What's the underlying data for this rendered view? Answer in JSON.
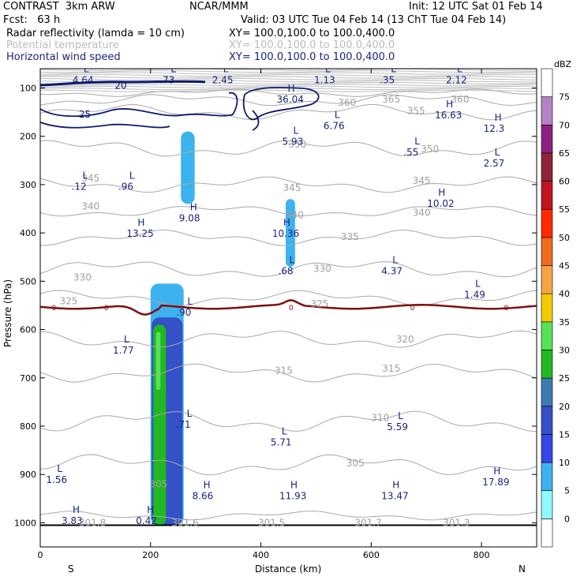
{
  "header": {
    "left1": "CONTRAST  3km ARW",
    "center1": "NCAR/MMM",
    "right1": "Init: 12 UTC Sat 01 Feb 14",
    "left2": "Fcst:   63 h",
    "right2": "Valid: 03 UTC Tue 04 Feb 14 (13 ChT Tue 04 Feb 14)",
    "field1_name": "Radar reflectivity (lamda = 10 cm)",
    "field1_xy": "XY= 100.0,100.0 to 100.0,400.0",
    "field2_name": "Potential temperature",
    "field2_xy": "XY= 100.0,100.0 to 100.0,400.0",
    "field3_name": "Horizontal wind speed",
    "field3_xy": "XY= 100.0,100.0 to 100.0,400.0"
  },
  "chart_data": {
    "type": "cross-section",
    "xlabel": "Distance (km)",
    "ylabel": "Pressure (hPa)",
    "xlim": [
      0,
      900
    ],
    "ylim": [
      1050,
      60
    ],
    "x_ticks": [
      0,
      200,
      400,
      600,
      800
    ],
    "y_ticks": [
      100,
      200,
      300,
      400,
      500,
      600,
      700,
      800,
      900,
      1000
    ],
    "left_end_label": "S",
    "right_end_label": "N",
    "colorbar": {
      "unit": "dBZ",
      "levels": [
        0,
        5,
        10,
        15,
        20,
        25,
        30,
        35,
        40,
        45,
        50,
        55,
        60,
        65,
        70,
        75
      ],
      "colors": [
        "#ffffff",
        "#8ffaff",
        "#3cb3ee",
        "#3346e8",
        "#3451c8",
        "#3f7bb0",
        "#21b821",
        "#55e255",
        "#f2cc00",
        "#f5a442",
        "#f06a1e",
        "#ff2a00",
        "#c0141f",
        "#8f2438",
        "#8c2080",
        "#b383c3",
        "#ffffff"
      ]
    },
    "theta_labels": [
      {
        "x": 540,
        "p": 130,
        "text": "360"
      },
      {
        "x": 620,
        "p": 124,
        "text": "365"
      },
      {
        "x": 665,
        "p": 147,
        "text": "355"
      },
      {
        "x": 745,
        "p": 124,
        "text": "360"
      },
      {
        "x": 450,
        "p": 217,
        "text": "350"
      },
      {
        "x": 690,
        "p": 227,
        "text": "350"
      },
      {
        "x": 75,
        "p": 287,
        "text": "345"
      },
      {
        "x": 440,
        "p": 307,
        "text": "345"
      },
      {
        "x": 675,
        "p": 292,
        "text": "345"
      },
      {
        "x": 75,
        "p": 345,
        "text": "340"
      },
      {
        "x": 445,
        "p": 363,
        "text": "340"
      },
      {
        "x": 675,
        "p": 358,
        "text": "340"
      },
      {
        "x": 545,
        "p": 408,
        "text": "335"
      },
      {
        "x": 60,
        "p": 492,
        "text": "330"
      },
      {
        "x": 495,
        "p": 474,
        "text": "330"
      },
      {
        "x": 35,
        "p": 541,
        "text": "325"
      },
      {
        "x": 490,
        "p": 547,
        "text": "325"
      },
      {
        "x": 645,
        "p": 620,
        "text": "320"
      },
      {
        "x": 425,
        "p": 685,
        "text": "315"
      },
      {
        "x": 620,
        "p": 681,
        "text": "315"
      },
      {
        "x": 600,
        "p": 783,
        "text": "310"
      },
      {
        "x": 555,
        "p": 877,
        "text": "305"
      },
      {
        "x": 198,
        "p": 920,
        "text": "305"
      }
    ],
    "surface_theta_labels": [
      {
        "x": 70,
        "text": "301.8"
      },
      {
        "x": 238,
        "text": "301.6"
      },
      {
        "x": 395,
        "text": "301.5"
      },
      {
        "x": 570,
        "text": "301.7"
      },
      {
        "x": 730,
        "text": "301.3"
      }
    ],
    "wind_contour_labels": [
      {
        "x": 135,
        "p": 95,
        "text": "20"
      },
      {
        "x": 70,
        "p": 155,
        "text": "25"
      }
    ],
    "zero_line_labels": [
      {
        "x": 25,
        "text": "0"
      },
      {
        "x": 120,
        "text": "0"
      },
      {
        "x": 455,
        "text": "0"
      },
      {
        "x": 675,
        "text": "0"
      },
      {
        "x": 845,
        "text": "0"
      }
    ],
    "extrema": [
      {
        "type": "L",
        "value": "4.64",
        "x": 70,
        "p": 72
      },
      {
        "type": "L",
        "value": ".73",
        "x": 228,
        "p": 72
      },
      {
        "type": "L",
        "value": "2.45",
        "x": 323,
        "p": 72
      },
      {
        "type": "L",
        "value": "1.13",
        "x": 508,
        "p": 72
      },
      {
        "type": "L",
        "value": ".35",
        "x": 627,
        "p": 72
      },
      {
        "type": "L",
        "value": "2.12",
        "x": 747,
        "p": 72
      },
      {
        "type": "H",
        "value": "36.04",
        "x": 440,
        "p": 112
      },
      {
        "type": "H",
        "value": "16.63",
        "x": 727,
        "p": 145
      },
      {
        "type": "H",
        "value": "12.3",
        "x": 815,
        "p": 173
      },
      {
        "type": "L",
        "value": "6.76",
        "x": 525,
        "p": 167
      },
      {
        "type": "L",
        "value": "5.93",
        "x": 450,
        "p": 200
      },
      {
        "type": "L",
        "value": ".55",
        "x": 670,
        "p": 222
      },
      {
        "type": "L",
        "value": "2.57",
        "x": 815,
        "p": 245
      },
      {
        "type": "L",
        "value": ".12",
        "x": 68,
        "p": 293
      },
      {
        "type": "L",
        "value": ".96",
        "x": 153,
        "p": 293
      },
      {
        "type": "H",
        "value": "10.02",
        "x": 713,
        "p": 328
      },
      {
        "type": "H",
        "value": "9.08",
        "x": 263,
        "p": 358
      },
      {
        "type": "H",
        "value": "13.25",
        "x": 168,
        "p": 390
      },
      {
        "type": "H",
        "value": "10.36",
        "x": 432,
        "p": 390
      },
      {
        "type": "L",
        "value": ".68",
        "x": 443,
        "p": 468
      },
      {
        "type": "L",
        "value": "4.37",
        "x": 630,
        "p": 468
      },
      {
        "type": "L",
        "value": "1.49",
        "x": 780,
        "p": 517
      },
      {
        "type": "L",
        "value": ".90",
        "x": 258,
        "p": 553
      },
      {
        "type": "L",
        "value": "1.77",
        "x": 143,
        "p": 632
      },
      {
        "type": "L",
        "value": ".71",
        "x": 257,
        "p": 785
      },
      {
        "type": "L",
        "value": "5.71",
        "x": 429,
        "p": 822
      },
      {
        "type": "L",
        "value": "5.59",
        "x": 640,
        "p": 790
      },
      {
        "type": "L",
        "value": "1.56",
        "x": 22,
        "p": 900
      },
      {
        "type": "H",
        "value": "8.66",
        "x": 287,
        "p": 933
      },
      {
        "type": "H",
        "value": "11.93",
        "x": 445,
        "p": 933
      },
      {
        "type": "H",
        "value": "13.47",
        "x": 630,
        "p": 933
      },
      {
        "type": "H",
        "value": "17.89",
        "x": 813,
        "p": 905
      },
      {
        "type": "H",
        "value": "3.83",
        "x": 50,
        "p": 985
      },
      {
        "type": "H",
        "value": "0.42",
        "x": 185,
        "p": 985
      }
    ],
    "reflectivity_cells": [
      {
        "dbz": 5,
        "x1": 255,
        "x2": 280,
        "p1": 190,
        "p2": 340
      },
      {
        "dbz": 5,
        "x1": 445,
        "x2": 462,
        "p1": 330,
        "p2": 470
      },
      {
        "dbz": 5,
        "x1": 200,
        "x2": 260,
        "p1": 505,
        "p2": 1005
      },
      {
        "dbz": 15,
        "x1": 202,
        "x2": 258,
        "p1": 575,
        "p2": 1005
      },
      {
        "dbz": 25,
        "x1": 205,
        "x2": 228,
        "p1": 590,
        "p2": 1005
      },
      {
        "dbz": 30,
        "x1": 210,
        "x2": 218,
        "p1": 605,
        "p2": 725
      }
    ]
  }
}
